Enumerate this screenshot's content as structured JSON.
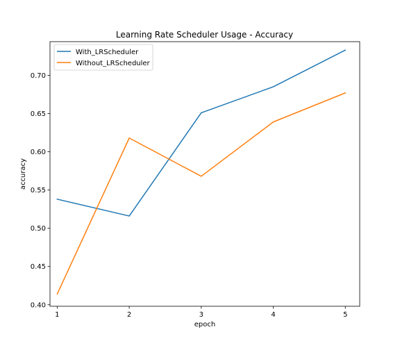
{
  "chart_data": {
    "type": "line",
    "title": "Learning Rate Scheduler Usage - Accuracy",
    "xlabel": "epoch",
    "ylabel": "accuracy",
    "x": [
      1,
      2,
      3,
      4,
      5
    ],
    "x_ticks": [
      "1",
      "2",
      "3",
      "4",
      "5"
    ],
    "y_ticks": [
      "0.40",
      "0.45",
      "0.50",
      "0.55",
      "0.60",
      "0.65",
      "0.70"
    ],
    "xlim": [
      0.9,
      5.2
    ],
    "ylim": [
      0.398,
      0.744
    ],
    "grid": false,
    "legend_position": "top-left",
    "series": [
      {
        "name": "With_LRScheduler",
        "color": "#1f77b4",
        "values": [
          0.538,
          0.516,
          0.651,
          0.685,
          0.733
        ]
      },
      {
        "name": "Without_LRScheduler",
        "color": "#ff7f0e",
        "values": [
          0.414,
          0.618,
          0.568,
          0.639,
          0.677
        ]
      }
    ]
  }
}
